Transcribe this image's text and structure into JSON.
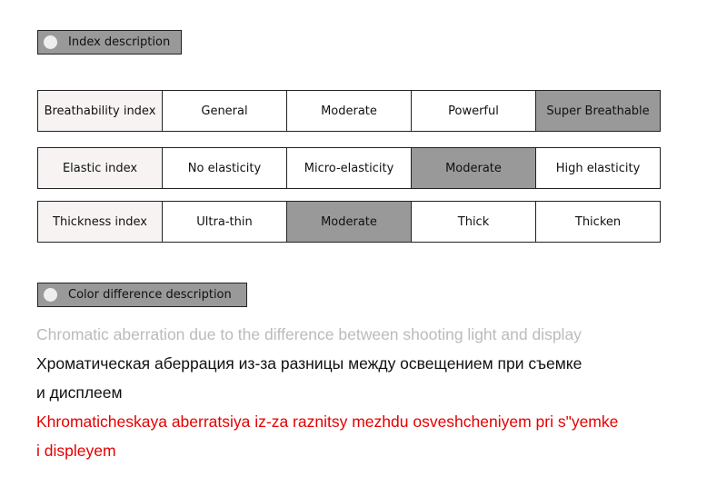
{
  "colors": {
    "selected": "#999999",
    "label_bg": "#f7f3f3",
    "english": "#bbbbbb",
    "russian": "#111111",
    "translit": "#e50000"
  },
  "index_section": {
    "title": "Index description",
    "icon": "circle-icon"
  },
  "rows": [
    {
      "label": "Breathability index",
      "options": [
        "General",
        "Moderate",
        "Powerful",
        "Super Breathable"
      ],
      "selected": 3
    },
    {
      "label": "Elastic index",
      "options": [
        "No elasticity",
        "Micro-elasticity",
        "Moderate",
        "High elasticity"
      ],
      "selected": 2
    },
    {
      "label": "Thickness index",
      "options": [
        "Ultra-thin",
        "Moderate",
        "Thick",
        "Thicken"
      ],
      "selected": 1
    }
  ],
  "color_section": {
    "title": "Color difference description",
    "icon": "circle-icon",
    "english": "Chromatic aberration due to the difference between shooting light and display",
    "russian": [
      "Хроматическая аберрация из-за разницы между освещением при съемке",
      "и дисплеем"
    ],
    "translit": [
      "Khromaticheskaya aberratsiya iz-za raznitsy mezhdu osveshcheniyem pri s\"yemke",
      "i displeyem"
    ]
  }
}
